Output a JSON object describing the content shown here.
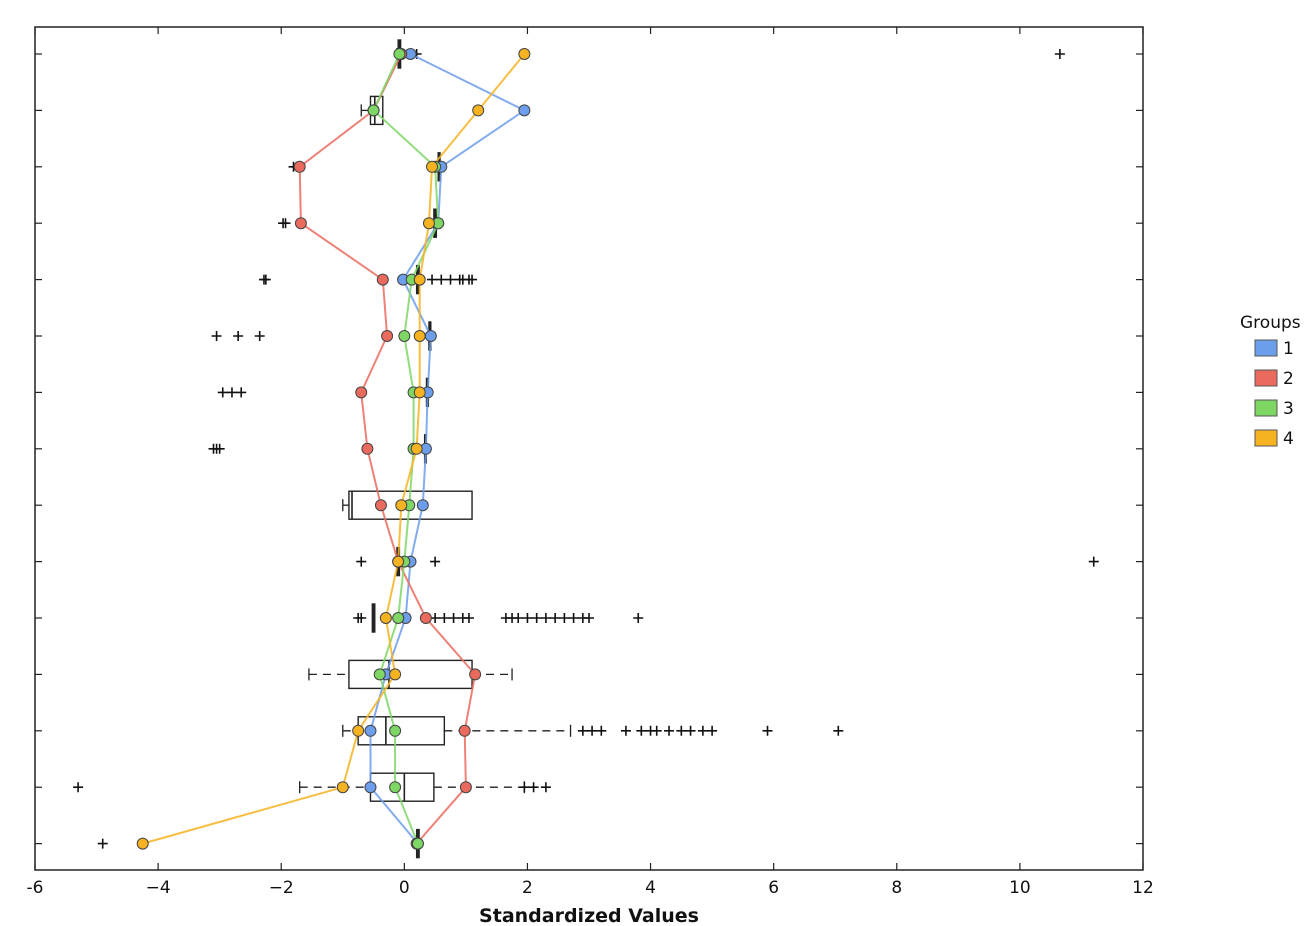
{
  "chart_data": {
    "type": "box-with-lines",
    "xlabel": "Standardized Values",
    "ylabel": "",
    "title": "",
    "xlim": [
      -6,
      12
    ],
    "x_ticks": [
      -6,
      -4,
      -2,
      0,
      2,
      4,
      6,
      8,
      10,
      12
    ],
    "x_tick_labels": [
      "-6",
      "−4",
      "−2",
      "0",
      "2",
      "4",
      "6",
      "8",
      "10",
      "12"
    ],
    "rows": 15,
    "legend": {
      "title": "Groups",
      "placement": "right",
      "entries": [
        {
          "label": "1",
          "color": "#6d9eeb"
        },
        {
          "label": "2",
          "color": "#ea6b5e"
        },
        {
          "label": "3",
          "color": "#7ed665"
        },
        {
          "label": "4",
          "color": "#f6b321"
        }
      ]
    },
    "series": [
      {
        "name": "1",
        "color": "#6d9eeb",
        "values": [
          0.1,
          1.95,
          0.6,
          0.55,
          -0.02,
          0.43,
          0.38,
          0.35,
          0.3,
          0.1,
          0.02,
          -0.3,
          -0.55,
          -0.55,
          0.22
        ]
      },
      {
        "name": "2",
        "color": "#ea6b5e",
        "values": [
          -0.05,
          -0.5,
          -1.7,
          -1.68,
          -0.35,
          -0.28,
          -0.7,
          -0.6,
          -0.38,
          -0.1,
          0.35,
          1.15,
          0.98,
          1.0,
          0.2
        ]
      },
      {
        "name": "3",
        "color": "#7ed665",
        "values": [
          -0.08,
          -0.5,
          0.5,
          0.55,
          0.12,
          0.0,
          0.15,
          0.15,
          0.08,
          0.0,
          -0.1,
          -0.4,
          -0.15,
          -0.15,
          0.22
        ]
      },
      {
        "name": "4",
        "color": "#f6b321",
        "values": [
          1.95,
          1.2,
          0.45,
          0.4,
          0.25,
          0.25,
          0.25,
          0.2,
          -0.05,
          -0.1,
          -0.3,
          -0.15,
          -0.75,
          -1.0,
          -4.25
        ]
      }
    ],
    "boxes": [
      {
        "row": 0,
        "q1": -0.1,
        "median": -0.08,
        "q3": -0.06,
        "whisker_low": -0.12,
        "whisker_high": -0.05
      },
      {
        "row": 1,
        "q1": -0.55,
        "median": -0.48,
        "q3": -0.35,
        "whisker_low": -0.7,
        "whisker_high": -0.35
      },
      {
        "row": 2,
        "q1": 0.55,
        "median": 0.57,
        "q3": 0.58,
        "whisker_low": 0.55,
        "whisker_high": 0.58
      },
      {
        "row": 3,
        "q1": 0.48,
        "median": 0.5,
        "q3": 0.52,
        "whisker_low": 0.48,
        "whisker_high": 0.52
      },
      {
        "row": 4,
        "q1": 0.2,
        "median": 0.22,
        "q3": 0.24,
        "whisker_low": 0.2,
        "whisker_high": 0.24
      },
      {
        "row": 5,
        "q1": 0.4,
        "median": 0.42,
        "q3": 0.43,
        "whisker_low": 0.4,
        "whisker_high": 0.43
      },
      {
        "row": 6,
        "q1": 0.36,
        "median": 0.38,
        "q3": 0.39,
        "whisker_low": 0.36,
        "whisker_high": 0.39
      },
      {
        "row": 7,
        "q1": 0.33,
        "median": 0.34,
        "q3": 0.35,
        "whisker_low": 0.33,
        "whisker_high": 0.35
      },
      {
        "row": 8,
        "q1": -0.9,
        "median": -0.85,
        "q3": 1.1,
        "whisker_low": -1.0,
        "whisker_high": 1.1
      },
      {
        "row": 9,
        "q1": -0.12,
        "median": -0.1,
        "q3": -0.08,
        "whisker_low": -0.12,
        "whisker_high": -0.08
      },
      {
        "row": 10,
        "q1": -0.52,
        "median": -0.5,
        "q3": -0.48,
        "whisker_low": -0.52,
        "whisker_high": -0.48
      },
      {
        "row": 11,
        "q1": -0.9,
        "median": -0.25,
        "q3": 1.1,
        "whisker_low": -1.55,
        "whisker_high": 1.75
      },
      {
        "row": 12,
        "q1": -0.75,
        "median": -0.3,
        "q3": 0.65,
        "whisker_low": -1.0,
        "whisker_high": 2.7
      },
      {
        "row": 13,
        "q1": -0.55,
        "median": 0.0,
        "q3": 0.48,
        "whisker_low": -1.7,
        "whisker_high": 1.95
      },
      {
        "row": 14,
        "q1": 0.2,
        "median": 0.22,
        "q3": 0.24,
        "whisker_low": 0.2,
        "whisker_high": 0.24
      }
    ],
    "outliers": [
      {
        "row": 0,
        "values": [
          0.2,
          10.65
        ]
      },
      {
        "row": 1,
        "values": []
      },
      {
        "row": 2,
        "values": [
          -1.8,
          -1.75
        ]
      },
      {
        "row": 3,
        "values": [
          -1.97,
          -1.93
        ]
      },
      {
        "row": 4,
        "values": [
          -2.28,
          -2.25,
          0.45,
          0.6,
          0.75,
          0.9,
          0.95,
          1.05,
          1.1
        ]
      },
      {
        "row": 5,
        "values": [
          -3.05,
          -2.7,
          -2.35
        ]
      },
      {
        "row": 6,
        "values": [
          -2.95,
          -2.8,
          -2.65
        ]
      },
      {
        "row": 7,
        "values": [
          -3.1,
          -3.05,
          -3.0
        ]
      },
      {
        "row": 8,
        "values": []
      },
      {
        "row": 9,
        "values": [
          -0.7,
          0.5,
          11.2
        ]
      },
      {
        "row": 10,
        "values": [
          -0.75,
          -0.7,
          0.5,
          0.65,
          0.8,
          0.95,
          1.05,
          1.65,
          1.75,
          1.85,
          2.0,
          2.15,
          2.3,
          2.45,
          2.6,
          2.75,
          2.9,
          3.0,
          3.8
        ]
      },
      {
        "row": 11,
        "values": []
      },
      {
        "row": 12,
        "values": [
          2.9,
          3.05,
          3.2,
          3.6,
          3.85,
          4.0,
          4.1,
          4.3,
          4.5,
          4.65,
          4.85,
          5.0,
          5.9,
          7.05
        ]
      },
      {
        "row": 13,
        "values": [
          -5.3,
          1.95,
          2.1,
          2.3
        ]
      },
      {
        "row": 14,
        "values": [
          -4.9
        ]
      }
    ]
  }
}
